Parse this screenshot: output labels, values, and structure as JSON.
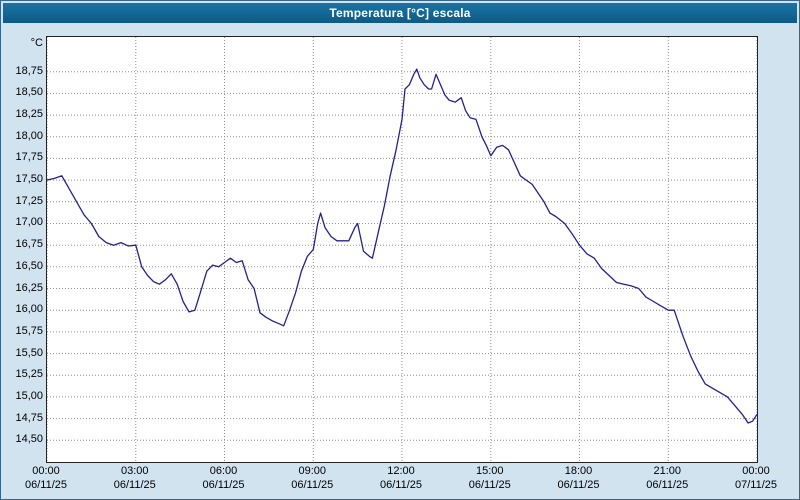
{
  "window": {
    "title": "Temperatura [°C] escala"
  },
  "theme": {
    "background": "#d2e3f0",
    "titlebar_top": "#1a74a4",
    "titlebar_bottom": "#0e5a85",
    "title_text_color": "#ffffff",
    "plot_background": "#ffffff",
    "grid_color": "#909090",
    "line_color": "#22228e",
    "axis_text_color": "#000000"
  },
  "chart_data": {
    "type": "line",
    "title": "Temperatura [°C] escala",
    "xlabel": "",
    "ylabel": "°C",
    "grid": true,
    "legend_position": "none",
    "xlim": [
      0,
      24
    ],
    "ylim": [
      14.25,
      19.15
    ],
    "yticks": [
      {
        "value": 18.75,
        "label": "18,75"
      },
      {
        "value": 18.5,
        "label": "18,50"
      },
      {
        "value": 18.25,
        "label": "18,25"
      },
      {
        "value": 18.0,
        "label": "18,00"
      },
      {
        "value": 17.75,
        "label": "17,75"
      },
      {
        "value": 17.5,
        "label": "17,50"
      },
      {
        "value": 17.25,
        "label": "17,25"
      },
      {
        "value": 17.0,
        "label": "17,00"
      },
      {
        "value": 16.75,
        "label": "16,75"
      },
      {
        "value": 16.5,
        "label": "16,50"
      },
      {
        "value": 16.25,
        "label": "16,25"
      },
      {
        "value": 16.0,
        "label": "16,00"
      },
      {
        "value": 15.75,
        "label": "15,75"
      },
      {
        "value": 15.5,
        "label": "15,50"
      },
      {
        "value": 15.25,
        "label": "15,25"
      },
      {
        "value": 15.0,
        "label": "15,00"
      },
      {
        "value": 14.75,
        "label": "14,75"
      },
      {
        "value": 14.5,
        "label": "14,50"
      }
    ],
    "xticks": [
      {
        "hour": 0,
        "time": "00:00",
        "date": "06/11/25"
      },
      {
        "hour": 3,
        "time": "03:00",
        "date": "06/11/25"
      },
      {
        "hour": 6,
        "time": "06:00",
        "date": "06/11/25"
      },
      {
        "hour": 9,
        "time": "09:00",
        "date": "06/11/25"
      },
      {
        "hour": 12,
        "time": "12:00",
        "date": "06/11/25"
      },
      {
        "hour": 15,
        "time": "15:00",
        "date": "06/11/25"
      },
      {
        "hour": 18,
        "time": "18:00",
        "date": "06/11/25"
      },
      {
        "hour": 21,
        "time": "21:00",
        "date": "06/11/25"
      },
      {
        "hour": 24,
        "time": "00:00",
        "date": "07/11/25"
      }
    ],
    "series": [
      {
        "name": "Temperatura",
        "points": [
          [
            0,
            17.5
          ],
          [
            0.25,
            17.52
          ],
          [
            0.5,
            17.55
          ],
          [
            0.75,
            17.4
          ],
          [
            1,
            17.25
          ],
          [
            1.25,
            17.1
          ],
          [
            1.5,
            17.0
          ],
          [
            1.75,
            16.85
          ],
          [
            2,
            16.78
          ],
          [
            2.25,
            16.75
          ],
          [
            2.5,
            16.78
          ],
          [
            2.75,
            16.74
          ],
          [
            3,
            16.75
          ],
          [
            3.2,
            16.5
          ],
          [
            3.4,
            16.4
          ],
          [
            3.6,
            16.33
          ],
          [
            3.8,
            16.3
          ],
          [
            4,
            16.35
          ],
          [
            4.2,
            16.42
          ],
          [
            4.4,
            16.3
          ],
          [
            4.6,
            16.1
          ],
          [
            4.8,
            15.98
          ],
          [
            5,
            16.0
          ],
          [
            5.2,
            16.22
          ],
          [
            5.4,
            16.45
          ],
          [
            5.6,
            16.52
          ],
          [
            5.8,
            16.5
          ],
          [
            6,
            16.55
          ],
          [
            6.2,
            16.6
          ],
          [
            6.4,
            16.55
          ],
          [
            6.6,
            16.57
          ],
          [
            6.8,
            16.35
          ],
          [
            7,
            16.25
          ],
          [
            7.2,
            15.97
          ],
          [
            7.4,
            15.92
          ],
          [
            7.6,
            15.88
          ],
          [
            7.8,
            15.85
          ],
          [
            8,
            15.82
          ],
          [
            8.2,
            16.0
          ],
          [
            8.4,
            16.2
          ],
          [
            8.6,
            16.45
          ],
          [
            8.8,
            16.62
          ],
          [
            9,
            16.7
          ],
          [
            9.15,
            17.0
          ],
          [
            9.25,
            17.12
          ],
          [
            9.4,
            16.95
          ],
          [
            9.6,
            16.85
          ],
          [
            9.8,
            16.8
          ],
          [
            10,
            16.8
          ],
          [
            10.2,
            16.8
          ],
          [
            10.4,
            16.95
          ],
          [
            10.5,
            17.0
          ],
          [
            10.7,
            16.68
          ],
          [
            10.9,
            16.62
          ],
          [
            11,
            16.6
          ],
          [
            11.2,
            16.9
          ],
          [
            11.4,
            17.2
          ],
          [
            11.6,
            17.55
          ],
          [
            11.8,
            17.85
          ],
          [
            12,
            18.2
          ],
          [
            12.1,
            18.55
          ],
          [
            12.25,
            18.6
          ],
          [
            12.4,
            18.72
          ],
          [
            12.5,
            18.78
          ],
          [
            12.6,
            18.68
          ],
          [
            12.75,
            18.6
          ],
          [
            12.9,
            18.55
          ],
          [
            13,
            18.55
          ],
          [
            13.15,
            18.72
          ],
          [
            13.3,
            18.6
          ],
          [
            13.45,
            18.48
          ],
          [
            13.6,
            18.42
          ],
          [
            13.8,
            18.4
          ],
          [
            14,
            18.45
          ],
          [
            14.15,
            18.3
          ],
          [
            14.3,
            18.22
          ],
          [
            14.5,
            18.2
          ],
          [
            14.7,
            18.0
          ],
          [
            14.85,
            17.9
          ],
          [
            15,
            17.78
          ],
          [
            15.2,
            17.88
          ],
          [
            15.4,
            17.9
          ],
          [
            15.6,
            17.85
          ],
          [
            15.8,
            17.7
          ],
          [
            16,
            17.55
          ],
          [
            16.2,
            17.5
          ],
          [
            16.4,
            17.45
          ],
          [
            16.6,
            17.35
          ],
          [
            16.8,
            17.25
          ],
          [
            17,
            17.12
          ],
          [
            17.2,
            17.08
          ],
          [
            17.5,
            17.0
          ],
          [
            17.75,
            16.88
          ],
          [
            18,
            16.75
          ],
          [
            18.25,
            16.65
          ],
          [
            18.5,
            16.6
          ],
          [
            18.75,
            16.48
          ],
          [
            19,
            16.4
          ],
          [
            19.25,
            16.32
          ],
          [
            19.5,
            16.3
          ],
          [
            19.75,
            16.28
          ],
          [
            20,
            16.25
          ],
          [
            20.25,
            16.15
          ],
          [
            20.5,
            16.1
          ],
          [
            20.75,
            16.05
          ],
          [
            21,
            16.0
          ],
          [
            21.2,
            16.0
          ],
          [
            21.35,
            15.85
          ],
          [
            21.5,
            15.7
          ],
          [
            21.75,
            15.48
          ],
          [
            22,
            15.3
          ],
          [
            22.25,
            15.15
          ],
          [
            22.5,
            15.1
          ],
          [
            22.75,
            15.05
          ],
          [
            23,
            15.0
          ],
          [
            23.25,
            14.9
          ],
          [
            23.5,
            14.8
          ],
          [
            23.7,
            14.7
          ],
          [
            23.85,
            14.72
          ],
          [
            24,
            14.8
          ]
        ]
      }
    ]
  }
}
